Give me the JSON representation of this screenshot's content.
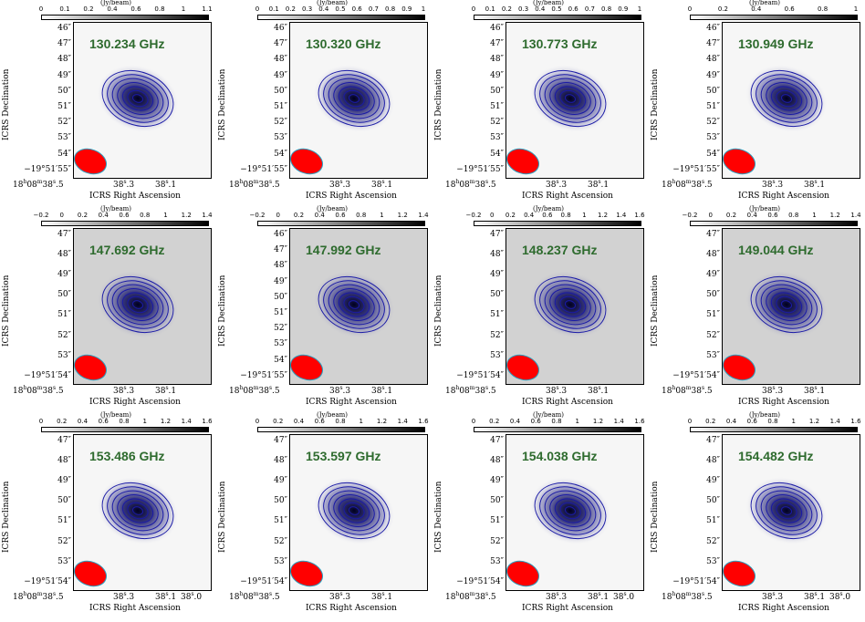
{
  "colors": {
    "contour": "#1a1aa6",
    "beam": "#ff0000",
    "beam_edge": "#2aa0c0",
    "label": "#2e6b2e"
  },
  "chart_data": [
    {
      "type": "image",
      "freq": "130.234 GHz",
      "cbar_title": "(Jy/beam)",
      "cbar_ticks": [
        "0",
        "0.1",
        "0.2",
        "0.4",
        "0.6",
        "0.8",
        "1",
        "1.1"
      ],
      "dec_ticks": [
        "46″",
        "47″",
        "48″",
        "49″",
        "50″",
        "51″",
        "52″",
        "53″",
        "54″",
        "−19°51′55″"
      ],
      "ra_ticks": [
        "18h08m38s.5",
        "38s.3",
        "38s.1"
      ],
      "xlabel": "ICRS Right Ascension",
      "ylabel": "ICRS Declination"
    },
    {
      "type": "image",
      "freq": "130.320 GHz",
      "cbar_title": "(Jy/beam)",
      "cbar_ticks": [
        "0",
        "0.1",
        "0.2",
        "0.3",
        "0.4",
        "0.5",
        "0.6",
        "0.7",
        "0.8",
        "0.9",
        "1"
      ],
      "dec_ticks": [
        "46″",
        "47″",
        "48″",
        "49″",
        "50″",
        "51″",
        "52″",
        "53″",
        "54″",
        "−19°51′55″"
      ],
      "ra_ticks": [
        "18h08m38s.5",
        "38s.3",
        "38s.1"
      ],
      "xlabel": "ICRS Right Ascension",
      "ylabel": "ICRS Declination"
    },
    {
      "type": "image",
      "freq": "130.773 GHz",
      "cbar_title": "(Jy/beam)",
      "cbar_ticks": [
        "0",
        "0.1",
        "0.2",
        "0.3",
        "0.4",
        "0.5",
        "0.6",
        "0.7",
        "0.8",
        "0.9",
        "1"
      ],
      "dec_ticks": [
        "46″",
        "47″",
        "48″",
        "49″",
        "50″",
        "51″",
        "52″",
        "53″",
        "54″",
        "−19°51′55″"
      ],
      "ra_ticks": [
        "18h08m38s.5",
        "38s.3",
        "38s.1"
      ],
      "xlabel": "ICRS Right Ascension",
      "ylabel": "ICRS Declination"
    },
    {
      "type": "image",
      "freq": "130.949 GHz",
      "cbar_title": "(Jy/beam)",
      "cbar_ticks": [
        "0",
        "0.2",
        "0.4",
        "0.6",
        "0.8",
        "1"
      ],
      "dec_ticks": [
        "46″",
        "47″",
        "48″",
        "49″",
        "50″",
        "51″",
        "52″",
        "53″",
        "54″",
        "−19°51′55″"
      ],
      "ra_ticks": [
        "18h08m38s.5",
        "38s.3",
        "38s.1"
      ],
      "xlabel": "ICRS Right Ascension",
      "ylabel": "ICRS Declination"
    },
    {
      "type": "image",
      "freq": "147.692 GHz",
      "cbar_title": "(Jy/beam)",
      "cbar_ticks": [
        "−0.2",
        "0",
        "0.2",
        "0.4",
        "0.6",
        "0.8",
        "1",
        "1.2",
        "1.4"
      ],
      "dec_ticks": [
        "47″",
        "48″",
        "49″",
        "50″",
        "51″",
        "52″",
        "53″",
        "−19°51′54″"
      ],
      "ra_ticks": [
        "18h08m38s.5",
        "38s.3",
        "38s.1"
      ],
      "xlabel": "ICRS Right Ascension",
      "ylabel": "ICRS Declination"
    },
    {
      "type": "image",
      "freq": "147.992 GHz",
      "cbar_title": "(Jy/beam)",
      "cbar_ticks": [
        "−0.2",
        "0",
        "0.2",
        "0.4",
        "0.6",
        "0.8",
        "1",
        "1.2",
        "1.4"
      ],
      "dec_ticks": [
        "46″",
        "47″",
        "48″",
        "49″",
        "50″",
        "51″",
        "52″",
        "53″",
        "54″",
        "−19°51′55″"
      ],
      "ra_ticks": [
        "18h08m38s.5",
        "38s.3",
        "38s.1"
      ],
      "xlabel": "ICRS Right Ascension",
      "ylabel": "ICRS Declination"
    },
    {
      "type": "image",
      "freq": "148.237 GHz",
      "cbar_title": "(Jy/beam)",
      "cbar_ticks": [
        "−0.2",
        "0",
        "0.2",
        "0.4",
        "0.6",
        "0.8",
        "1",
        "1.2",
        "1.4",
        "1.6"
      ],
      "dec_ticks": [
        "47″",
        "48″",
        "49″",
        "50″",
        "51″",
        "52″",
        "53″",
        "−19°51′54″"
      ],
      "ra_ticks": [
        "18h08m38s.5",
        "38s.3",
        "38s.1"
      ],
      "xlabel": "ICRS Right Ascension",
      "ylabel": "ICRS Declination"
    },
    {
      "type": "image",
      "freq": "149.044 GHz",
      "cbar_title": "(Jy/beam)",
      "cbar_ticks": [
        "−0.2",
        "0",
        "0.2",
        "0.4",
        "0.6",
        "0.8",
        "1",
        "1.2",
        "1.4"
      ],
      "dec_ticks": [
        "47″",
        "48″",
        "49″",
        "50″",
        "51″",
        "52″",
        "53″",
        "−19°51′54″"
      ],
      "ra_ticks": [
        "18h08m38s.5",
        "38s.3",
        "38s.1"
      ],
      "xlabel": "ICRS Right Ascension",
      "ylabel": "ICRS Declination"
    },
    {
      "type": "image",
      "freq": "153.486 GHz",
      "cbar_title": "(Jy/beam)",
      "cbar_ticks": [
        "0",
        "0.2",
        "0.4",
        "0.6",
        "0.8",
        "1",
        "1.2",
        "1.4",
        "1.6"
      ],
      "dec_ticks": [
        "47″",
        "48″",
        "49″",
        "50″",
        "51″",
        "52″",
        "53″",
        "−19°51′54″"
      ],
      "ra_ticks": [
        "18h08m38s.5",
        "38s.3",
        "38s.1",
        "38s.0"
      ],
      "xlabel": "ICRS Right Ascension",
      "ylabel": "ICRS Declination"
    },
    {
      "type": "image",
      "freq": "153.597 GHz",
      "cbar_title": "(Jy/beam)",
      "cbar_ticks": [
        "0",
        "0.2",
        "0.4",
        "0.6",
        "0.8",
        "1",
        "1.2",
        "1.4",
        "1.6"
      ],
      "dec_ticks": [
        "47″",
        "48″",
        "49″",
        "50″",
        "51″",
        "52″",
        "53″",
        "−19°51′54″"
      ],
      "ra_ticks": [
        "18h08m38s.5",
        "38s.3",
        "38s.1"
      ],
      "xlabel": "ICRS Right Ascension",
      "ylabel": "ICRS Declination"
    },
    {
      "type": "image",
      "freq": "154.038 GHz",
      "cbar_title": "(Jy/beam)",
      "cbar_ticks": [
        "0",
        "0.2",
        "0.4",
        "0.6",
        "0.8",
        "1",
        "1.2",
        "1.4",
        "1.6"
      ],
      "dec_ticks": [
        "47″",
        "48″",
        "49″",
        "50″",
        "51″",
        "52″",
        "53″",
        "−19°51′54″"
      ],
      "ra_ticks": [
        "18h08m38s.5",
        "38s.3",
        "38s.1",
        "38s.0"
      ],
      "xlabel": "ICRS Right Ascension",
      "ylabel": "ICRS Declination"
    },
    {
      "type": "image",
      "freq": "154.482 GHz",
      "cbar_title": "(Jy/beam)",
      "cbar_ticks": [
        "0",
        "0.2",
        "0.4",
        "0.6",
        "0.8",
        "1",
        "1.2",
        "1.4",
        "1.6"
      ],
      "dec_ticks": [
        "47″",
        "48″",
        "49″",
        "50″",
        "51″",
        "52″",
        "53″",
        "−19°51′54″"
      ],
      "ra_ticks": [
        "18h08m38s.5",
        "38s.3",
        "38s.1",
        "38s.0"
      ],
      "xlabel": "ICRS Right Ascension",
      "ylabel": "ICRS Declination"
    }
  ]
}
